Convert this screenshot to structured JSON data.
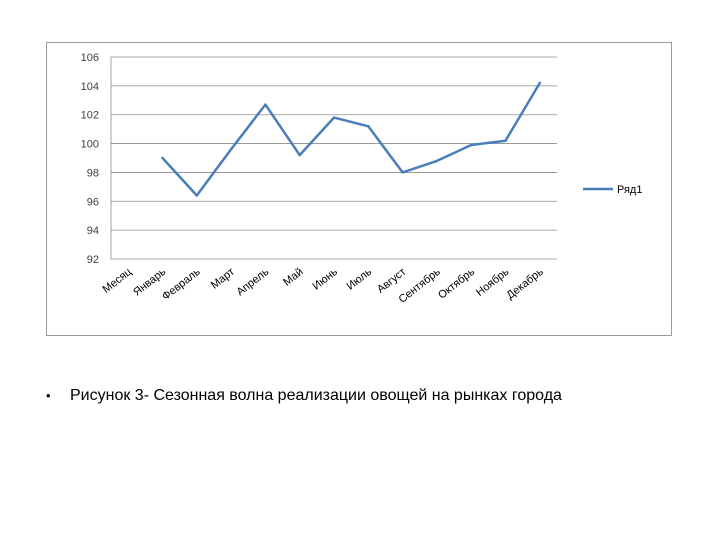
{
  "chart_data": {
    "type": "line",
    "categories": [
      "Месяц",
      "Январь",
      "Февраль",
      "Март",
      "Апрель",
      "Май",
      "Июнь",
      "Июль",
      "Август",
      "Сентябрь",
      "Октябрь",
      "Ноябрь",
      "Декабрь"
    ],
    "series": [
      {
        "name": "Ряд1",
        "values": [
          null,
          99.0,
          96.4,
          99.6,
          102.7,
          99.2,
          101.8,
          101.2,
          98.0,
          98.8,
          99.9,
          100.2,
          104.2
        ]
      }
    ],
    "ylim": [
      92,
      106
    ],
    "yticks": [
      "92",
      "94",
      "96",
      "98",
      "100",
      "102",
      "104",
      "106"
    ],
    "grid": true,
    "legend": "right",
    "line_color": "#4a7ebb"
  },
  "caption": {
    "bullet": "•",
    "text": "Рисунок 3- Сезонная волна реализации овощей на рынках города"
  }
}
